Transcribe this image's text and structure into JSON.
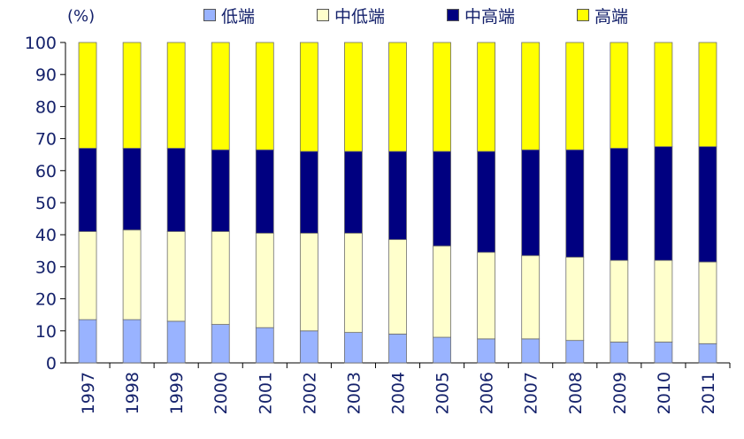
{
  "chart_data": {
    "type": "bar",
    "stacked": true,
    "unit_label": "(%)",
    "categories": [
      "1997",
      "1998",
      "1999",
      "2000",
      "2001",
      "2002",
      "2003",
      "2004",
      "2005",
      "2006",
      "2007",
      "2008",
      "2009",
      "2010",
      "2011"
    ],
    "ylim": [
      0,
      100
    ],
    "yticks": [
      0,
      10,
      20,
      30,
      40,
      50,
      60,
      70,
      80,
      90,
      100
    ],
    "legend_position": "top",
    "grid": false,
    "series": [
      {
        "name": "低端",
        "color": "#99b3ff",
        "values": [
          13.5,
          13.5,
          13,
          12,
          11,
          10,
          9.5,
          9,
          8,
          7.5,
          7.5,
          7,
          6.5,
          6.5,
          6
        ]
      },
      {
        "name": "中低端",
        "color": "#ffffcc",
        "values": [
          27.5,
          28,
          28,
          29,
          29.5,
          30.5,
          31,
          29.5,
          28.5,
          27,
          26,
          26,
          25.5,
          25.5,
          25.5
        ]
      },
      {
        "name": "中高端",
        "color": "#000080",
        "values": [
          26,
          25.5,
          26,
          25.5,
          26,
          25.5,
          25.5,
          27.5,
          29.5,
          31.5,
          33,
          33.5,
          35,
          35.5,
          36
        ]
      },
      {
        "name": "高端",
        "color": "#ffff00",
        "values": [
          33,
          33,
          33,
          33.5,
          33.5,
          34,
          34,
          34,
          34,
          34,
          33.5,
          33.5,
          33,
          32.5,
          32.5
        ]
      }
    ]
  }
}
